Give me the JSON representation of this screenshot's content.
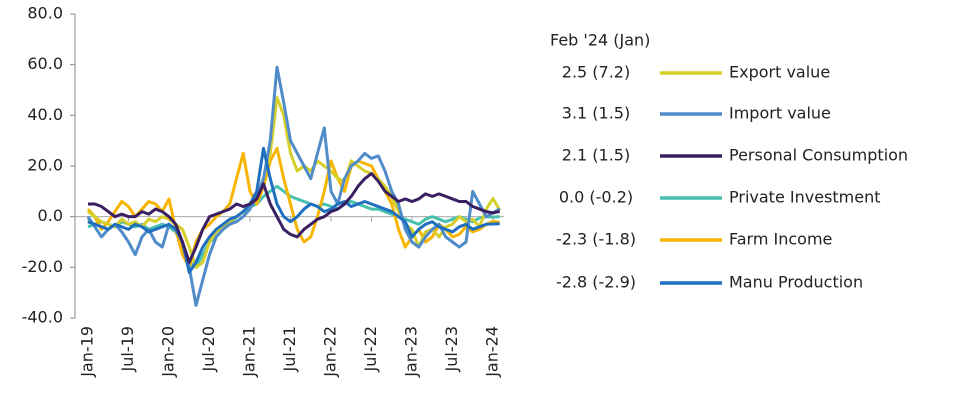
{
  "chart_data": {
    "type": "line",
    "categories": [
      "Jan-19",
      null,
      null,
      null,
      null,
      null,
      "Jul-19",
      null,
      null,
      null,
      null,
      null,
      "Jan-20",
      null,
      null,
      null,
      null,
      null,
      "Jul-20",
      null,
      null,
      null,
      null,
      null,
      "Jan-21",
      null,
      null,
      null,
      null,
      null,
      "Jul-21",
      null,
      null,
      null,
      null,
      null,
      "Jan-22",
      null,
      null,
      null,
      null,
      null,
      "Jul-22",
      null,
      null,
      null,
      null,
      null,
      "Jan-23",
      null,
      null,
      null,
      null,
      null,
      "Jul-23",
      null,
      null,
      null,
      null,
      null,
      "Jan-24",
      null
    ],
    "ylim": [
      -40,
      80
    ],
    "yticks": [
      {
        "value": -40,
        "label": "-40.0"
      },
      {
        "value": -20,
        "label": "-20.0"
      },
      {
        "value": 0,
        "label": "0.0"
      },
      {
        "value": 20,
        "label": "20.0"
      },
      {
        "value": 40,
        "label": "40.0"
      },
      {
        "value": 60,
        "label": "60.0"
      },
      {
        "value": 80,
        "label": "80.0"
      }
    ],
    "legend_title": "Feb '24 (Jan)",
    "series": [
      {
        "name": "Export value",
        "legend_value": "2.5 (7.2)",
        "color": "#d6cf2a",
        "values": [
          2,
          0,
          -2,
          -3,
          -4,
          -1,
          -3,
          -2,
          -4,
          -1,
          -2,
          0,
          -1,
          -3,
          -5,
          -12,
          -20,
          -18,
          -10,
          -6,
          -4,
          -2,
          0,
          2,
          5,
          8,
          15,
          25,
          47,
          40,
          25,
          18,
          20,
          18,
          22,
          20,
          18,
          15,
          14,
          22,
          20,
          18,
          17,
          15,
          12,
          8,
          2,
          -3,
          -5,
          -12,
          -6,
          -5,
          -8,
          -4,
          -3,
          0,
          -2,
          -1,
          -4,
          3,
          7.2,
          2.5
        ]
      },
      {
        "name": "Import value",
        "legend_value": "3.1 (1.5)",
        "color": "#4f8cc9",
        "values": [
          0,
          -4,
          -8,
          -5,
          -3,
          -6,
          -10,
          -15,
          -8,
          -5,
          -10,
          -12,
          -3,
          -5,
          -10,
          -20,
          -35,
          -25,
          -15,
          -8,
          -5,
          -3,
          -2,
          0,
          3,
          8,
          15,
          30,
          59,
          45,
          30,
          25,
          20,
          15,
          25,
          35,
          10,
          5,
          15,
          20,
          22,
          25,
          23,
          24,
          18,
          10,
          5,
          -5,
          -10,
          -12,
          -8,
          -5,
          -3,
          -8,
          -10,
          -12,
          -10,
          10,
          5,
          0,
          1.5,
          3.1
        ]
      },
      {
        "name": "Personal Consumption",
        "legend_value": "2.1 (1.5)",
        "color": "#3b1f63",
        "values": [
          5,
          5,
          4,
          2,
          0,
          1,
          0,
          0,
          2,
          1,
          3,
          2,
          0,
          -3,
          -10,
          -18,
          -12,
          -5,
          0,
          1,
          2,
          3,
          5,
          4,
          5,
          7,
          13,
          5,
          0,
          -5,
          -7,
          -8,
          -5,
          -3,
          -1,
          0,
          2,
          3,
          5,
          8,
          12,
          15,
          17,
          14,
          10,
          8,
          6,
          7,
          6,
          7,
          9,
          8,
          9,
          8,
          7,
          6,
          6,
          4,
          3,
          2,
          1.5,
          2.1
        ]
      },
      {
        "name": "Private Investment",
        "legend_value": "0.0 (-0.2)",
        "color": "#47c1ad",
        "values": [
          -4,
          -3,
          -2,
          -3,
          -4,
          -2,
          -3,
          -4,
          -3,
          -5,
          -4,
          -3,
          -4,
          -6,
          -12,
          -18,
          -20,
          -15,
          -10,
          -8,
          -5,
          -3,
          0,
          2,
          4,
          5,
          8,
          10,
          12,
          10,
          8,
          7,
          6,
          5,
          4,
          5,
          4,
          3,
          5,
          6,
          5,
          4,
          3,
          3,
          2,
          1,
          0,
          -1,
          -2,
          -3,
          -1,
          0,
          -1,
          -2,
          -1,
          0,
          -1,
          -2,
          -0.5,
          0,
          -0.2,
          0.0
        ]
      },
      {
        "name": "Farm Income",
        "legend_value": "-2.3 (-1.8)",
        "color": "#f7b500",
        "values": [
          3,
          0,
          -5,
          -2,
          2,
          6,
          4,
          0,
          3,
          6,
          5,
          2,
          7,
          -5,
          -15,
          -20,
          -10,
          -5,
          -3,
          0,
          2,
          5,
          15,
          25,
          10,
          5,
          12,
          22,
          27,
          15,
          5,
          -5,
          -10,
          -8,
          0,
          10,
          22,
          15,
          10,
          20,
          22,
          21,
          20,
          15,
          10,
          5,
          -5,
          -12,
          -8,
          -5,
          -10,
          -8,
          -3,
          -5,
          -8,
          -7,
          -4,
          -6,
          -5,
          -3,
          -1.8,
          -2.3
        ]
      },
      {
        "name": "Manu Production",
        "legend_value": "-2.8 (-2.9)",
        "color": "#1f6fc0",
        "values": [
          -2,
          -3,
          -4,
          -5,
          -3,
          -4,
          -5,
          -3,
          -4,
          -6,
          -5,
          -4,
          -3,
          -5,
          -10,
          -22,
          -18,
          -12,
          -8,
          -5,
          -3,
          -1,
          0,
          2,
          5,
          10,
          27,
          15,
          5,
          0,
          -2,
          0,
          3,
          5,
          4,
          2,
          3,
          5,
          6,
          4,
          5,
          6,
          5,
          4,
          3,
          2,
          0,
          -2,
          -8,
          -5,
          -3,
          -2,
          -4,
          -5,
          -6,
          -4,
          -3,
          -5,
          -4,
          -3,
          -2.9,
          -2.8
        ]
      }
    ]
  }
}
